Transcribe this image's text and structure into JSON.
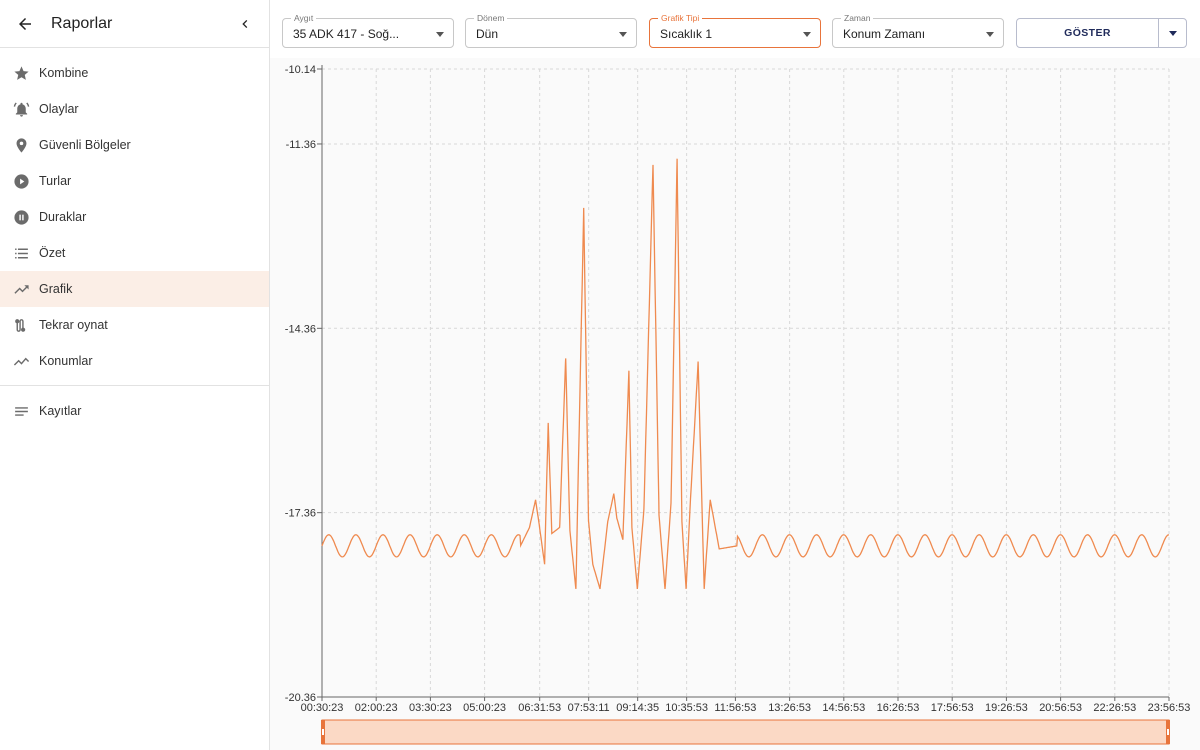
{
  "sidebar": {
    "title": "Raporlar",
    "items": [
      {
        "label": "Kombine",
        "icon": "star-icon"
      },
      {
        "label": "Olaylar",
        "icon": "bell-icon"
      },
      {
        "label": "Güvenli Bölgeler",
        "icon": "map-pin-icon"
      },
      {
        "label": "Turlar",
        "icon": "play-circle-icon"
      },
      {
        "label": "Duraklar",
        "icon": "pause-circle-icon"
      },
      {
        "label": "Özet",
        "icon": "list-icon"
      },
      {
        "label": "Grafik",
        "icon": "trending-up-icon",
        "active": true
      },
      {
        "label": "Tekrar oynat",
        "icon": "route-icon"
      },
      {
        "label": "Konumlar",
        "icon": "timeline-icon"
      }
    ],
    "footer_items": [
      {
        "label": "Kayıtlar",
        "icon": "notes-icon"
      }
    ]
  },
  "toolbar": {
    "device": {
      "label": "Aygıt",
      "value": "35 ADK 417 - Soğ..."
    },
    "period": {
      "label": "Dönem",
      "value": "Dün"
    },
    "chart_type": {
      "label": "Grafik Tipi",
      "value": "Sıcaklık 1"
    },
    "time": {
      "label": "Zaman",
      "value": "Konum Zamanı"
    },
    "show_label": "GÖSTER"
  },
  "colors": {
    "accent": "#e8743b",
    "line": "#ef8a4f",
    "brush_fill": "#fbd9c5",
    "button_text": "#1f2a5a"
  },
  "chart_data": {
    "type": "line",
    "xlabel": "",
    "ylabel": "",
    "ylim": [
      -20.36,
      -10.14
    ],
    "y_ticks": [
      "-10.14",
      "-11.36",
      "-14.36",
      "-17.36",
      "-20.36"
    ],
    "x_ticks": [
      "00:30:23",
      "02:00:23",
      "03:30:23",
      "05:00:23",
      "06:31:53",
      "07:53:11",
      "09:14:35",
      "10:35:53",
      "11:56:53",
      "13:26:53",
      "14:56:53",
      "16:26:53",
      "17:56:53",
      "19:26:53",
      "20:56:53",
      "22:26:53",
      "23:56:53"
    ],
    "grid": true,
    "legend": "none",
    "series": [
      {
        "baseline": -17.9,
        "baseline_wave_amplitude": 0.18,
        "baseline_wave_period_hours": 0.75,
        "x": [
          "00:30",
          "05:00",
          "06:00",
          "06:15",
          "06:25",
          "06:31",
          "06:40",
          "06:46",
          "06:52",
          "07:05",
          "07:15",
          "07:22",
          "07:32",
          "07:45",
          "07:53",
          "08:00",
          "08:12",
          "08:25",
          "08:35",
          "08:40",
          "08:50",
          "09:00",
          "09:05",
          "09:14",
          "09:25",
          "09:40",
          "09:50",
          "10:00",
          "10:10",
          "10:20",
          "10:28",
          "10:35",
          "10:42",
          "10:55",
          "11:05",
          "11:15",
          "11:30",
          "12:00",
          "23:56"
        ],
        "values": [
          -17.9,
          -17.9,
          -17.9,
          -17.6,
          -17.15,
          -17.55,
          -18.2,
          -15.9,
          -17.7,
          -17.6,
          -14.85,
          -17.65,
          -18.6,
          -12.4,
          -17.5,
          -18.2,
          -18.6,
          -17.5,
          -17.05,
          -17.45,
          -17.8,
          -15.05,
          -17.6,
          -18.6,
          -17.3,
          -11.7,
          -17.4,
          -18.6,
          -17.2,
          -11.6,
          -17.5,
          -18.6,
          -17.2,
          -14.9,
          -18.6,
          -17.15,
          -17.95,
          -17.9,
          -17.7
        ]
      }
    ]
  }
}
